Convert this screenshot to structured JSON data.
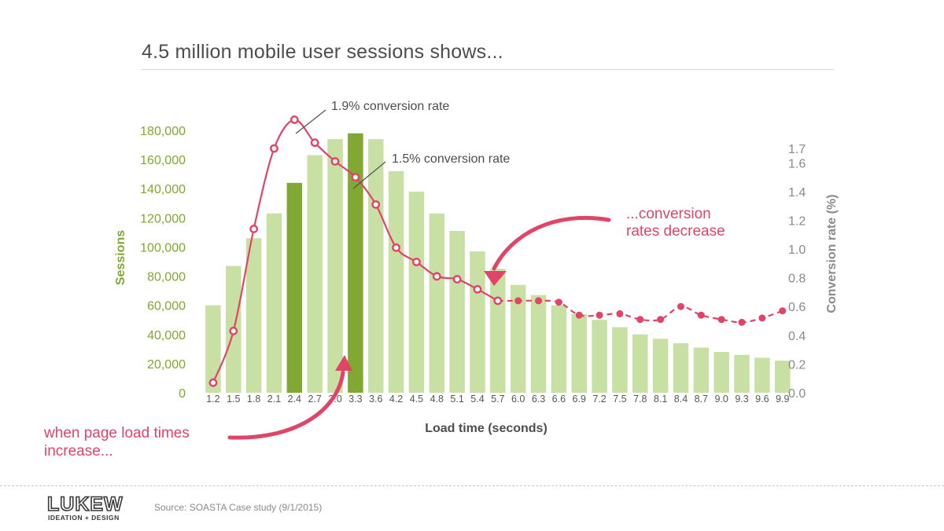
{
  "slide": {
    "title": "4.5 million mobile user sessions shows...",
    "source": "Source: SOASTA Case study (9/1/2015)",
    "logo": {
      "text": "LUKEW",
      "tagline": "IDEATION + DESIGN"
    }
  },
  "colors": {
    "bar": "#c8e0a4",
    "bar_highlight": "#80a832",
    "line": "#e04466",
    "left_axis": "#80a832",
    "right_axis": "#8a8a8a",
    "annotation": "#e04466"
  },
  "annotations": {
    "peak_conversion": "1.9% conversion rate",
    "second_conversion": "1.5% conversion rate",
    "decrease_line1": "...conversion",
    "decrease_line2": "rates decrease",
    "increase_line1": "when page load times",
    "increase_line2": "increase..."
  },
  "chart_data": {
    "type": "bar",
    "x_label": "Load time (seconds)",
    "y_label_left": "Sessions",
    "y_label_right": "Conversion rate (%)",
    "categories": [
      "1.2",
      "1.5",
      "1.8",
      "2.1",
      "2.4",
      "2.7",
      "3.0",
      "3.3",
      "3.6",
      "4.2",
      "4.5",
      "4.8",
      "5.1",
      "5.4",
      "5.7",
      "6.0",
      "6.3",
      "6.6",
      "6.9",
      "7.2",
      "7.5",
      "7.8",
      "8.1",
      "8.4",
      "8.7",
      "9.0",
      "9.3",
      "9.6",
      "9.9"
    ],
    "ylim_left": [
      0,
      180000
    ],
    "y_ticks_left": [
      "0",
      "20,000",
      "40,000",
      "60,000",
      "80,000",
      "100,000",
      "120,000",
      "140,000",
      "160,000",
      "180,000"
    ],
    "ylim_right": [
      0,
      1.7
    ],
    "y_ticks_right": [
      "0.0",
      "0.2",
      "0.4",
      "0.6",
      "0.8",
      "1.0",
      "1.2",
      "1.4",
      "1.6",
      "1.7"
    ],
    "highlighted_categories": [
      "2.4",
      "3.3"
    ],
    "series": [
      {
        "name": "Sessions",
        "type": "bar",
        "axis": "left",
        "values": [
          60000,
          87000,
          106000,
          123000,
          144000,
          163000,
          174000,
          178000,
          174000,
          152000,
          138000,
          123000,
          111000,
          97000,
          85000,
          74000,
          67000,
          60000,
          54000,
          50000,
          45000,
          40000,
          37000,
          34000,
          31000,
          28000,
          26000,
          24000,
          22000
        ]
      },
      {
        "name": "Conversion rate (%)",
        "type": "line",
        "axis": "right",
        "values": [
          0.07,
          0.43,
          1.14,
          1.7,
          1.9,
          1.74,
          1.61,
          1.5,
          1.31,
          1.01,
          0.91,
          0.81,
          0.79,
          0.72,
          0.64,
          0.64,
          0.64,
          0.63,
          0.54,
          0.54,
          0.55,
          0.51,
          0.51,
          0.6,
          0.54,
          0.51,
          0.49,
          0.52,
          0.57
        ]
      }
    ]
  }
}
